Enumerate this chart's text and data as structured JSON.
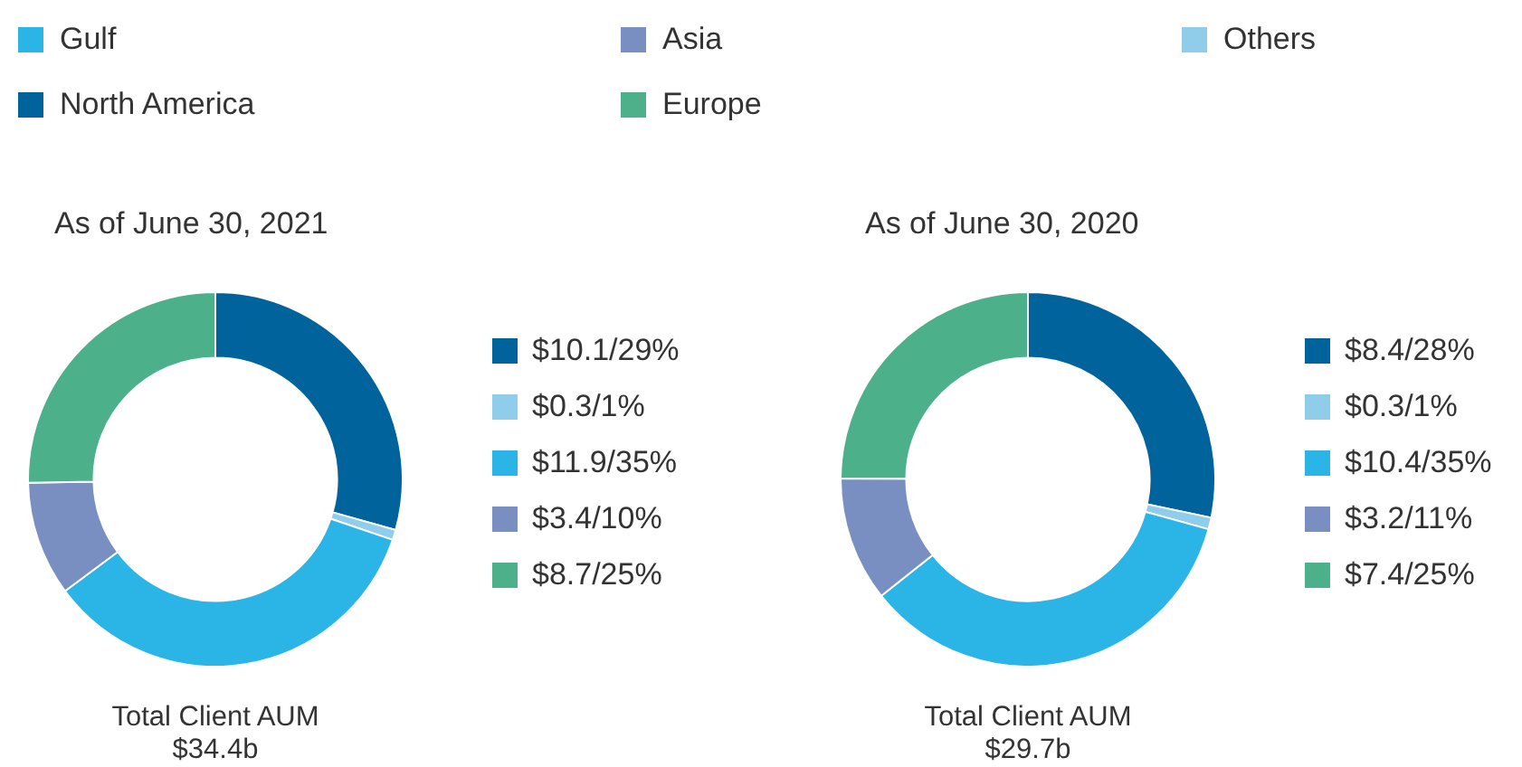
{
  "chart_data": [
    {
      "type": "other",
      "categories": [
        "Gulf",
        "Asia",
        "Others",
        "North America",
        "Europe"
      ],
      "colors": [
        "#2ab5e6",
        "#7a8fc1",
        "#8fcdeb",
        "#00639c",
        "#4cb08a"
      ]
    },
    {
      "type": "donut",
      "title": "As of June 30, 2021",
      "categories": [
        "$10.1/29%",
        "$0.3/1%",
        "$11.9/35%",
        "$3.4/10%",
        "$8.7/25%"
      ],
      "values": [
        10.1,
        0.3,
        11.9,
        3.4,
        8.7
      ],
      "colors": [
        "#00639c",
        "#8fcdeb",
        "#2ab5e6",
        "#7a8fc1",
        "#4cb08a"
      ],
      "legend": "right",
      "annotations": [
        "Total Client AUM",
        "$34.4b"
      ]
    },
    {
      "type": "donut",
      "title": "As of June 30, 2020",
      "categories": [
        "$8.4/28%",
        "$0.3/1%",
        "$10.4/35%",
        "$3.2/11%",
        "$7.4/25%"
      ],
      "values": [
        8.4,
        0.3,
        10.4,
        3.2,
        7.4
      ],
      "colors": [
        "#00639c",
        "#8fcdeb",
        "#2ab5e6",
        "#7a8fc1",
        "#4cb08a"
      ],
      "legend": "right",
      "annotations": [
        "Total Client AUM",
        "$29.7b"
      ]
    }
  ]
}
